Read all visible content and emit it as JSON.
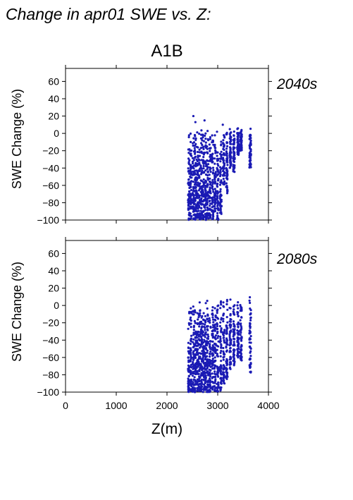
{
  "page_title": "Change in apr01 SWE vs. Z:",
  "scenario": "A1B",
  "colors": {
    "points": "#1a1ab4",
    "axis": "#000000",
    "panel_label": "#2a2aa8"
  },
  "chart_data": [
    {
      "type": "scatter",
      "panel_label": "2040s",
      "xlabel": "",
      "ylabel": "SWE Change (%)",
      "xlim": [
        0,
        4000
      ],
      "ylim": [
        -100,
        75
      ],
      "yticks": [
        60,
        40,
        20,
        0,
        -20,
        -40,
        -60,
        -80,
        -100
      ],
      "xticks": [
        0,
        1000,
        2000,
        3000,
        4000
      ],
      "xtick_labels_shown": false,
      "x_columns": [
        2430,
        2470,
        2520,
        2560,
        2600,
        2640,
        2680,
        2720,
        2760,
        2800,
        2850,
        2900,
        2950,
        3000,
        3060,
        3120,
        3180,
        3250,
        3320,
        3400,
        3460,
        3640
      ],
      "x_column_ymin": [
        -100,
        -100,
        -100,
        -100,
        -100,
        -100,
        -100,
        -100,
        -100,
        -100,
        -100,
        -100,
        -90,
        -100,
        -95,
        -60,
        -70,
        -40,
        -45,
        -25,
        -20,
        -40
      ],
      "x_column_ymax": [
        6,
        6,
        6,
        6,
        6,
        6,
        6,
        6,
        6,
        6,
        6,
        6,
        6,
        6,
        6,
        6,
        6,
        6,
        6,
        6,
        6,
        8
      ],
      "outliers": [
        {
          "x": 2520,
          "y": 20
        },
        {
          "x": 2560,
          "y": 13
        },
        {
          "x": 2740,
          "y": 15
        },
        {
          "x": 3100,
          "y": 10
        }
      ]
    },
    {
      "type": "scatter",
      "panel_label": "2080s",
      "xlabel": "Z(m)",
      "ylabel": "SWE Change (%)",
      "xlim": [
        0,
        4000
      ],
      "ylim": [
        -100,
        75
      ],
      "yticks": [
        60,
        40,
        20,
        0,
        -20,
        -40,
        -60,
        -80,
        -100
      ],
      "xticks": [
        0,
        1000,
        2000,
        3000,
        4000
      ],
      "xtick_labels_shown": true,
      "x_columns": [
        2430,
        2470,
        2520,
        2560,
        2600,
        2640,
        2680,
        2720,
        2760,
        2800,
        2850,
        2900,
        2950,
        3000,
        3060,
        3120,
        3180,
        3250,
        3320,
        3400,
        3460,
        3640
      ],
      "x_column_ymin": [
        -100,
        -100,
        -100,
        -100,
        -100,
        -100,
        -100,
        -100,
        -100,
        -100,
        -100,
        -100,
        -100,
        -100,
        -100,
        -90,
        -85,
        -75,
        -70,
        -60,
        -65,
        -78
      ],
      "x_column_ymax": [
        4,
        6,
        4,
        2,
        4,
        6,
        6,
        5,
        6,
        8,
        4,
        6,
        6,
        6,
        8,
        10,
        10,
        8,
        10,
        8,
        8,
        14
      ],
      "outliers": []
    }
  ]
}
